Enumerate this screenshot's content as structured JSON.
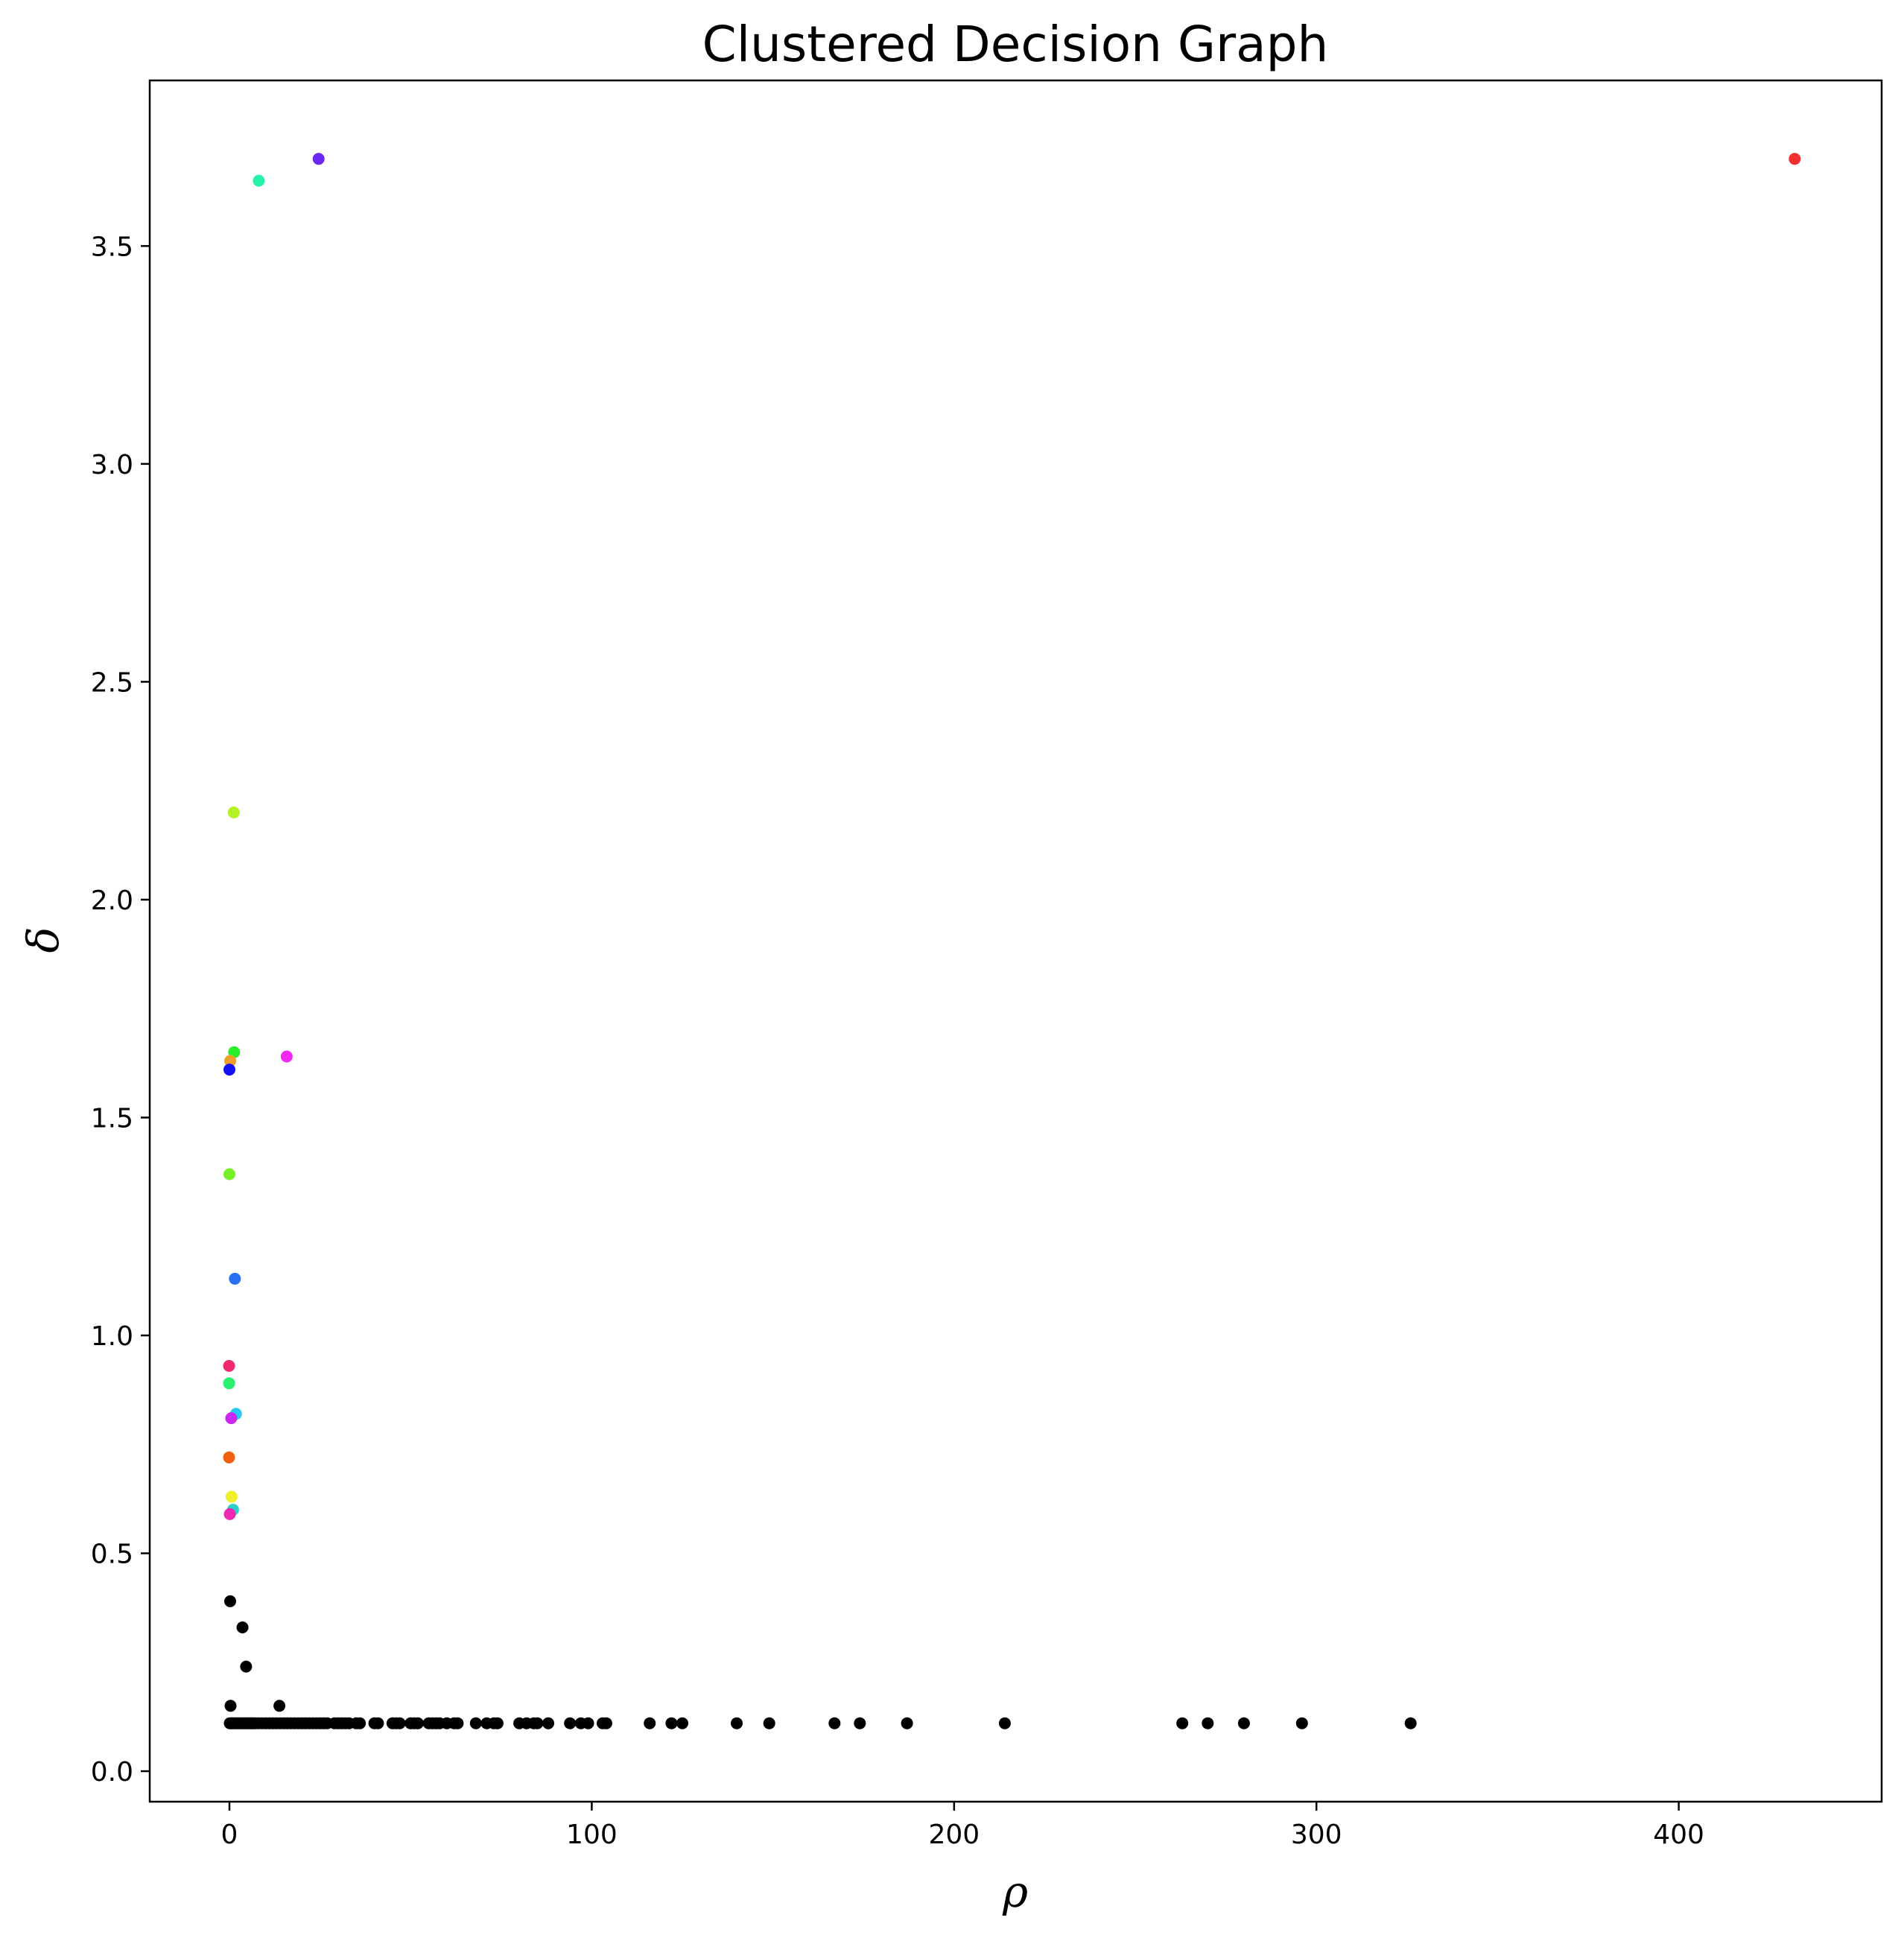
{
  "chart_data": {
    "type": "scatter",
    "title": "Clustered Decision Graph",
    "xlabel": "ρ",
    "ylabel": "δ",
    "xlim": [
      -22,
      456
    ],
    "ylim": [
      -0.07,
      3.88
    ],
    "xticks": [
      0,
      100,
      200,
      300,
      400
    ],
    "yticks": [
      0.0,
      0.5,
      1.0,
      1.5,
      2.0,
      2.5,
      3.0,
      3.5
    ],
    "xtick_labels": [
      "0",
      "100",
      "200",
      "300",
      "400"
    ],
    "ytick_labels": [
      "0.0",
      "0.5",
      "1.0",
      "1.5",
      "2.0",
      "2.5",
      "3.0",
      "3.5"
    ],
    "grid": false,
    "legend": "none",
    "cluster_centers": [
      {
        "x": 432,
        "y": 3.7,
        "color": "#f03030"
      },
      {
        "x": 24.6,
        "y": 3.7,
        "color": "#6a28f0"
      },
      {
        "x": 8.1,
        "y": 3.65,
        "color": "#28f0a8"
      },
      {
        "x": 1.2,
        "y": 2.2,
        "color": "#b4f028"
      },
      {
        "x": 1.3,
        "y": 1.65,
        "color": "#28f028"
      },
      {
        "x": 0.2,
        "y": 1.63,
        "color": "#f0a028"
      },
      {
        "x": 15.8,
        "y": 1.64,
        "color": "#f028f0"
      },
      {
        "x": 0.0,
        "y": 1.61,
        "color": "#1010f0"
      },
      {
        "x": 0.0,
        "y": 1.37,
        "color": "#78f028"
      },
      {
        "x": 1.5,
        "y": 1.13,
        "color": "#2870f0"
      },
      {
        "x": -0.1,
        "y": 0.93,
        "color": "#f02870"
      },
      {
        "x": -0.1,
        "y": 0.89,
        "color": "#28f070"
      },
      {
        "x": 1.8,
        "y": 0.82,
        "color": "#28c8f0"
      },
      {
        "x": 0.5,
        "y": 0.81,
        "color": "#c828f0"
      },
      {
        "x": -0.1,
        "y": 0.72,
        "color": "#f06010"
      },
      {
        "x": 0.6,
        "y": 0.63,
        "color": "#f0f028"
      },
      {
        "x": 1.0,
        "y": 0.6,
        "color": "#28d0c8"
      },
      {
        "x": 0.1,
        "y": 0.59,
        "color": "#f028b4"
      }
    ],
    "other_points": {
      "color": "#000000",
      "x": [
        0.2,
        0.3,
        3.6,
        4.6,
        13.8,
        0.1,
        0.6,
        1.0,
        1.5,
        2.0,
        2.5,
        3.0,
        3.5,
        4.0,
        4.5,
        5.0,
        5.5,
        6.0,
        6.5,
        7.0,
        8.0,
        9.0,
        10.0,
        11.0,
        12.0,
        13.0,
        14.0,
        15.0,
        16.0,
        17.0,
        18.0,
        19.0,
        20.0,
        21.0,
        22.0,
        23.0,
        24.0,
        25.0,
        26.0,
        27.0,
        29.0,
        30.0,
        31.0,
        32.0,
        33.0,
        35.0,
        36.0,
        40.0,
        41.0,
        45.0,
        46.0,
        47.0,
        50.0,
        51.0,
        52.0,
        55.0,
        56.0,
        57.0,
        58.0,
        60.0,
        62.0,
        63.0,
        68.0,
        71.0,
        73.0,
        74.0,
        80.0,
        82.0,
        84.0,
        85.0,
        88.0,
        94.0,
        97.0,
        99.0,
        103.0,
        104.0,
        116.0,
        122.0,
        125.0,
        140.0,
        149.0,
        167.0,
        174.0,
        187.0,
        214.0,
        263.0,
        270.0,
        280.0,
        296.0,
        326.0
      ],
      "y": [
        0.39,
        0.15,
        0.33,
        0.24,
        0.15,
        0.11,
        0.11,
        0.11,
        0.11,
        0.11,
        0.11,
        0.11,
        0.11,
        0.11,
        0.11,
        0.11,
        0.11,
        0.11,
        0.11,
        0.11,
        0.11,
        0.11,
        0.11,
        0.11,
        0.11,
        0.11,
        0.11,
        0.11,
        0.11,
        0.11,
        0.11,
        0.11,
        0.11,
        0.11,
        0.11,
        0.11,
        0.11,
        0.11,
        0.11,
        0.11,
        0.11,
        0.11,
        0.11,
        0.11,
        0.11,
        0.11,
        0.11,
        0.11,
        0.11,
        0.11,
        0.11,
        0.11,
        0.11,
        0.11,
        0.11,
        0.11,
        0.11,
        0.11,
        0.11,
        0.11,
        0.11,
        0.11,
        0.11,
        0.11,
        0.11,
        0.11,
        0.11,
        0.11,
        0.11,
        0.11,
        0.11,
        0.11,
        0.11,
        0.11,
        0.11,
        0.11,
        0.11,
        0.11,
        0.11,
        0.11,
        0.11,
        0.11,
        0.11,
        0.11,
        0.11,
        0.11,
        0.11,
        0.11,
        0.11,
        0.11
      ]
    }
  }
}
